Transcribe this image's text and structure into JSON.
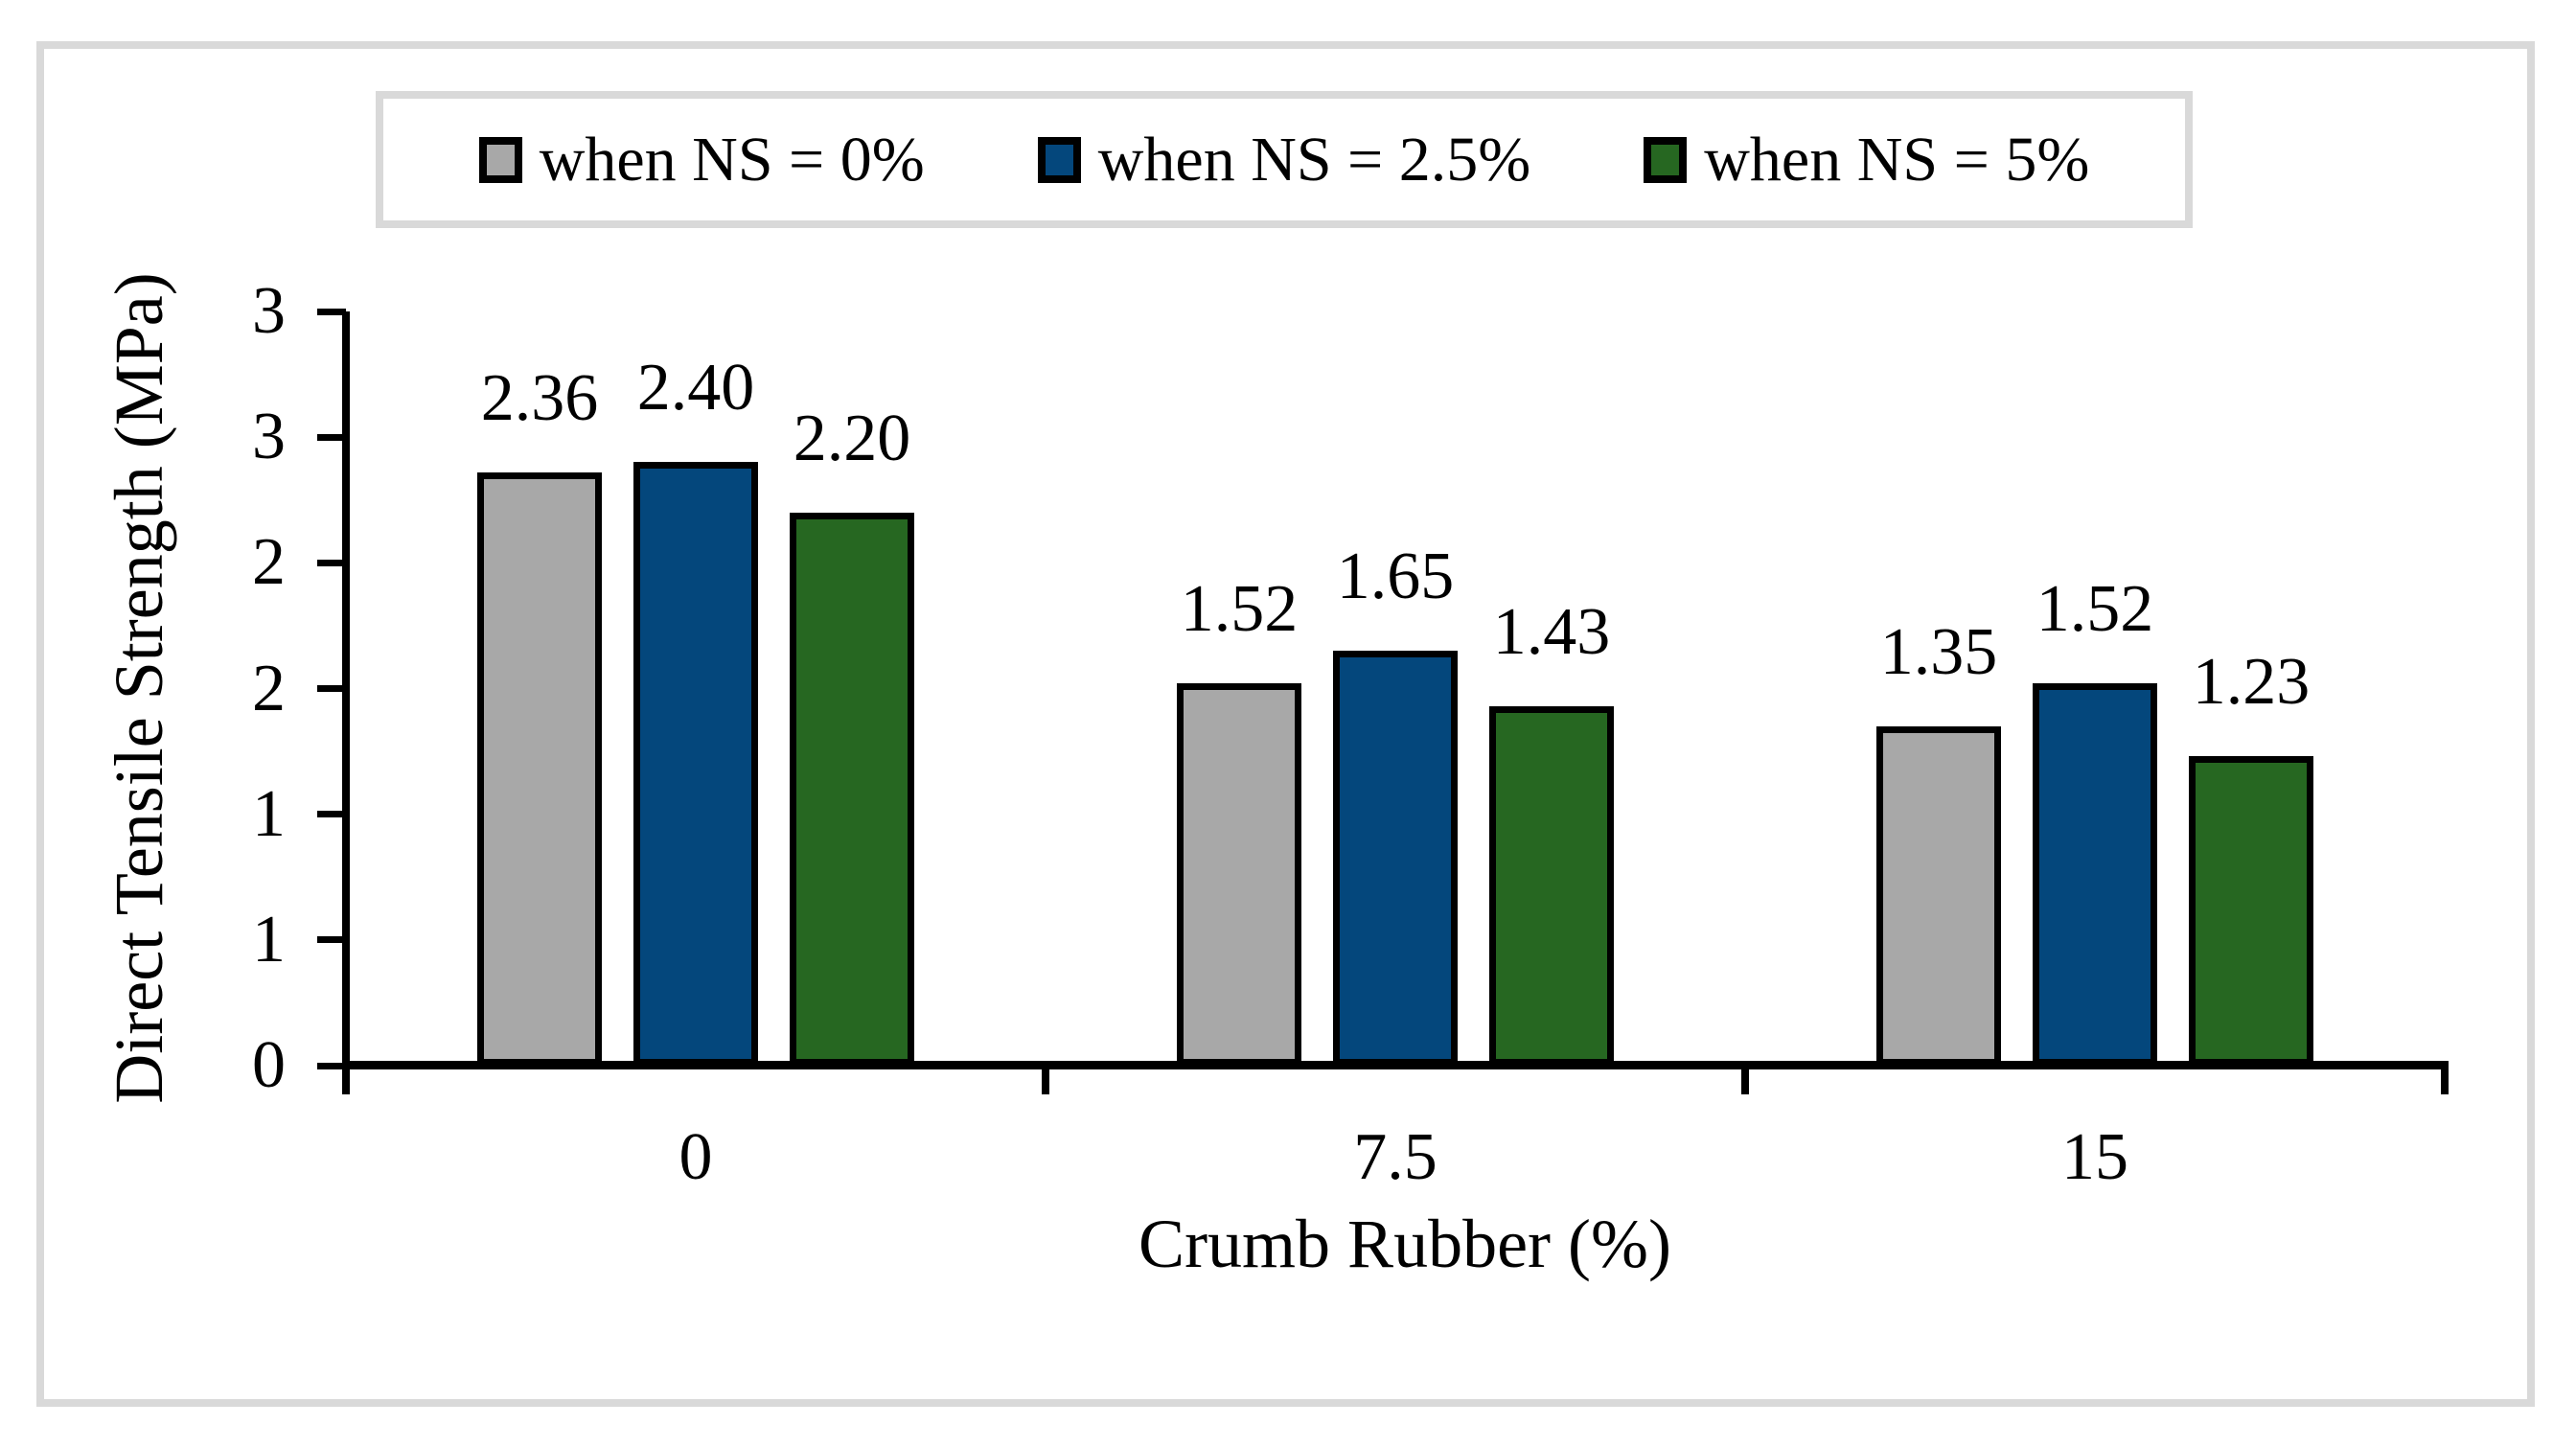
{
  "figure": {
    "background": "#ffffff",
    "frame_color": "#d9d9d9"
  },
  "legend": {
    "items": [
      {
        "label": "when NS = 0%",
        "color": "#a8a8a8"
      },
      {
        "label": "when NS = 2.5%",
        "color": "#04477c"
      },
      {
        "label": "when NS = 5%",
        "color": "#266721"
      }
    ]
  },
  "chart_data": {
    "type": "bar",
    "categories": [
      "0",
      "7.5",
      "15"
    ],
    "series": [
      {
        "name": "when NS = 0%",
        "color": "#a8a8a8",
        "values": [
          2.36,
          1.52,
          1.35
        ],
        "labels": [
          "2.36",
          "1.52",
          "1.35"
        ]
      },
      {
        "name": "when NS = 2.5%",
        "color": "#04477c",
        "values": [
          2.4,
          1.65,
          1.52
        ],
        "labels": [
          "2.40",
          "1.65",
          "1.52"
        ]
      },
      {
        "name": "when NS = 5%",
        "color": "#266721",
        "values": [
          2.2,
          1.43,
          1.23
        ],
        "labels": [
          "2.20",
          "1.43",
          "1.23"
        ]
      }
    ],
    "title": "",
    "xlabel": "Crumb Rubber (%)",
    "ylabel": "Direct Tensile Strength (MPa)",
    "ylim": [
      0,
      3
    ],
    "ytick_step": 0.5,
    "ytick_labels_top_to_bottom": [
      "3",
      "3",
      "2",
      "2",
      "1",
      "1",
      "0"
    ],
    "grid": false,
    "legend_position": "top",
    "bar_border_color": "#000000",
    "axis_color": "#000000",
    "value_labels_shown": true
  }
}
